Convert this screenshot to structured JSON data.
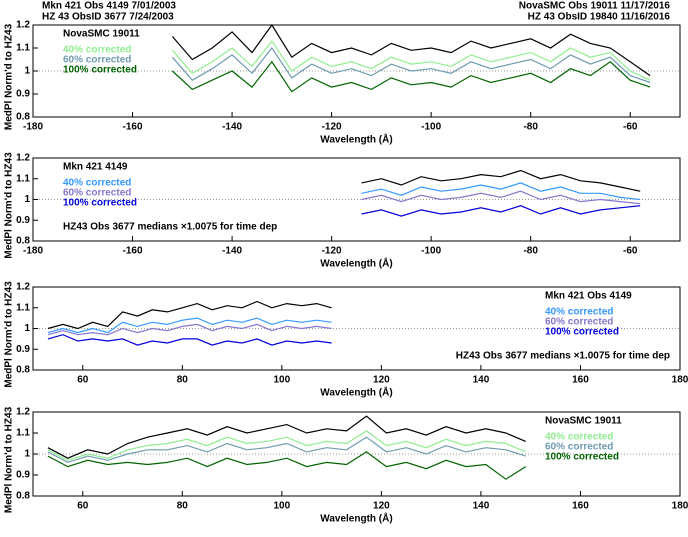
{
  "header": {
    "left": [
      "Mkn 421 Obs 4149 7/01/2003",
      "HZ 43 ObsID 3677 7/24/2003"
    ],
    "right": [
      "NovaSMC Obs 19011 11/17/2016",
      "HZ 43 ObsID 19840 11/16/2016"
    ]
  },
  "chart_data": [
    {
      "type": "line",
      "xlabel": "Wavelength (Å)",
      "ylabel": "MedPl Norm'd to HZ43",
      "annotations": [
        "NovaSMC 19011"
      ],
      "legend": "upper left",
      "xlim": [
        -180,
        -50
      ],
      "ylim": [
        0.8,
        1.2
      ],
      "xticks": [
        -180,
        -160,
        -140,
        -120,
        -100,
        -80,
        -60
      ],
      "yticks": [
        0.8,
        0.9,
        1,
        1.1,
        1.2
      ],
      "refline": 1,
      "x": [
        -152,
        -148,
        -144,
        -140,
        -136,
        -132,
        -128,
        -124,
        -120,
        -116,
        -112,
        -108,
        -104,
        -100,
        -96,
        -92,
        -88,
        -84,
        -80,
        -76,
        -72,
        -68,
        -64,
        -60,
        -56
      ],
      "series": [
        {
          "color": "#000000",
          "values": [
            1.15,
            1.05,
            1.1,
            1.17,
            1.08,
            1.2,
            1.06,
            1.12,
            1.08,
            1.1,
            1.07,
            1.12,
            1.09,
            1.1,
            1.08,
            1.13,
            1.1,
            1.12,
            1.14,
            1.1,
            1.16,
            1.12,
            1.1,
            1.04,
            0.98
          ]
        },
        {
          "name": "40% corrected",
          "color": "#90ee90",
          "values": [
            1.09,
            0.99,
            1.04,
            1.1,
            1.02,
            1.13,
            1.0,
            1.06,
            1.02,
            1.04,
            1.01,
            1.06,
            1.03,
            1.04,
            1.02,
            1.07,
            1.04,
            1.06,
            1.08,
            1.04,
            1.1,
            1.06,
            1.08,
            1.0,
            0.96
          ]
        },
        {
          "name": "60% corrected",
          "color": "#6f9ab0",
          "values": [
            1.06,
            0.96,
            1.01,
            1.07,
            0.99,
            1.1,
            0.97,
            1.03,
            0.99,
            1.01,
            0.98,
            1.03,
            1.0,
            1.01,
            0.99,
            1.04,
            1.01,
            1.03,
            1.05,
            1.01,
            1.07,
            1.03,
            1.06,
            0.98,
            0.95
          ]
        },
        {
          "name": "100% corrected",
          "color": "#006400",
          "values": [
            1.0,
            0.92,
            0.96,
            1.0,
            0.93,
            1.04,
            0.91,
            0.97,
            0.93,
            0.95,
            0.92,
            0.97,
            0.94,
            0.95,
            0.93,
            0.98,
            0.95,
            0.97,
            0.99,
            0.95,
            1.01,
            0.98,
            1.04,
            0.96,
            0.93
          ]
        }
      ]
    },
    {
      "type": "line",
      "xlabel": "Wavelength (Å)",
      "ylabel": "MedPl Norm'd to HZ43",
      "annotations": [
        "Mkn 421 4149",
        "HZ43 Obs 3677 medians ×1.0075 for time dep"
      ],
      "legend": "upper left",
      "xlim": [
        -180,
        -50
      ],
      "ylim": [
        0.8,
        1.2
      ],
      "xticks": [
        -180,
        -160,
        -140,
        -120,
        -100,
        -80,
        -60
      ],
      "yticks": [
        0.8,
        0.9,
        1,
        1.1,
        1.2
      ],
      "refline": 1,
      "x": [
        -114,
        -110,
        -106,
        -102,
        -98,
        -94,
        -90,
        -86,
        -82,
        -78,
        -74,
        -70,
        -66,
        -62,
        -58
      ],
      "series": [
        {
          "color": "#000000",
          "values": [
            1.08,
            1.1,
            1.07,
            1.11,
            1.09,
            1.1,
            1.12,
            1.11,
            1.14,
            1.1,
            1.12,
            1.09,
            1.08,
            1.06,
            1.04
          ]
        },
        {
          "name": "40% corrected",
          "color": "#3399ff",
          "values": [
            1.03,
            1.05,
            1.02,
            1.06,
            1.04,
            1.05,
            1.07,
            1.05,
            1.08,
            1.04,
            1.06,
            1.03,
            1.03,
            1.01,
            1.0
          ]
        },
        {
          "name": "60% corrected",
          "color": "#8877cc",
          "values": [
            1.0,
            1.02,
            0.99,
            1.02,
            1.0,
            1.01,
            1.03,
            1.01,
            1.04,
            1.0,
            1.02,
            0.99,
            1.0,
            0.99,
            0.98
          ]
        },
        {
          "name": "100% corrected",
          "color": "#0000dd",
          "values": [
            0.93,
            0.95,
            0.92,
            0.95,
            0.93,
            0.94,
            0.96,
            0.94,
            0.97,
            0.93,
            0.96,
            0.93,
            0.95,
            0.96,
            0.97
          ]
        }
      ]
    },
    {
      "type": "line",
      "xlabel": "Wavelength (Å)",
      "ylabel": "MedPl Norm'd to HZ43",
      "annotations": [
        "Mkn 421 Obs 4149",
        "HZ43 Obs 3677 medians ×1.0075 for time dep"
      ],
      "legend": "upper right",
      "xlim": [
        50,
        180
      ],
      "ylim": [
        0.8,
        1.2
      ],
      "xticks": [
        60,
        80,
        100,
        120,
        140,
        160,
        180
      ],
      "yticks": [
        0.8,
        0.9,
        1,
        1.1,
        1.2
      ],
      "refline": 1,
      "x": [
        53,
        56,
        59,
        62,
        65,
        68,
        71,
        74,
        77,
        80,
        83,
        86,
        89,
        92,
        95,
        98,
        101,
        104,
        107,
        110
      ],
      "series": [
        {
          "color": "#000000",
          "values": [
            1.0,
            1.02,
            1.0,
            1.03,
            1.01,
            1.08,
            1.06,
            1.09,
            1.08,
            1.1,
            1.12,
            1.09,
            1.11,
            1.1,
            1.13,
            1.1,
            1.12,
            1.11,
            1.12,
            1.1
          ]
        },
        {
          "name": "40% corrected",
          "color": "#3399ff",
          "values": [
            0.98,
            1.0,
            0.98,
            1.0,
            0.98,
            1.03,
            1.01,
            1.03,
            1.02,
            1.04,
            1.05,
            1.02,
            1.04,
            1.03,
            1.05,
            1.02,
            1.04,
            1.03,
            1.04,
            1.03
          ]
        },
        {
          "name": "60% corrected",
          "color": "#8877cc",
          "values": [
            0.97,
            0.99,
            0.97,
            0.98,
            0.97,
            1.0,
            0.98,
            1.0,
            0.99,
            1.01,
            1.02,
            0.99,
            1.01,
            1.0,
            1.02,
            0.99,
            1.01,
            1.0,
            1.01,
            1.0
          ]
        },
        {
          "name": "100% corrected",
          "color": "#0000dd",
          "values": [
            0.95,
            0.97,
            0.94,
            0.95,
            0.94,
            0.95,
            0.92,
            0.94,
            0.93,
            0.95,
            0.95,
            0.92,
            0.94,
            0.93,
            0.95,
            0.92,
            0.94,
            0.93,
            0.94,
            0.93
          ]
        }
      ]
    },
    {
      "type": "line",
      "xlabel": "Wavelength (Å)",
      "ylabel": "MedPl Norm'd to HZ43",
      "annotations": [
        "NovaSMC 19011"
      ],
      "legend": "upper right",
      "xlim": [
        50,
        180
      ],
      "ylim": [
        0.8,
        1.2
      ],
      "xticks": [
        60,
        80,
        100,
        120,
        140,
        160,
        180
      ],
      "yticks": [
        0.8,
        0.9,
        1,
        1.1,
        1.2
      ],
      "refline": 1,
      "x": [
        53,
        57,
        61,
        65,
        69,
        73,
        77,
        81,
        85,
        89,
        93,
        97,
        101,
        105,
        109,
        113,
        117,
        121,
        125,
        129,
        133,
        137,
        141,
        145,
        149
      ],
      "series": [
        {
          "color": "#000000",
          "values": [
            1.03,
            0.98,
            1.02,
            1.0,
            1.05,
            1.08,
            1.1,
            1.12,
            1.09,
            1.13,
            1.1,
            1.12,
            1.14,
            1.1,
            1.12,
            1.11,
            1.18,
            1.1,
            1.12,
            1.09,
            1.13,
            1.1,
            1.12,
            1.1,
            1.06
          ]
        },
        {
          "name": "40% corrected",
          "color": "#90ee90",
          "values": [
            1.02,
            0.97,
            1.0,
            0.98,
            1.02,
            1.04,
            1.05,
            1.07,
            1.04,
            1.08,
            1.05,
            1.06,
            1.08,
            1.04,
            1.06,
            1.05,
            1.11,
            1.04,
            1.06,
            1.03,
            1.07,
            1.04,
            1.06,
            1.05,
            1.01
          ]
        },
        {
          "name": "60% corrected",
          "color": "#6f9ab0",
          "values": [
            1.01,
            0.96,
            0.99,
            0.97,
            1.0,
            1.02,
            1.02,
            1.04,
            1.01,
            1.05,
            1.02,
            1.03,
            1.05,
            1.01,
            1.03,
            1.02,
            1.08,
            1.01,
            1.03,
            1.0,
            1.04,
            1.01,
            1.03,
            1.02,
            0.99
          ]
        },
        {
          "name": "100% corrected",
          "color": "#006400",
          "values": [
            0.99,
            0.94,
            0.97,
            0.95,
            0.96,
            0.95,
            0.96,
            0.98,
            0.94,
            0.98,
            0.95,
            0.96,
            0.98,
            0.94,
            0.96,
            0.95,
            1.01,
            0.94,
            0.96,
            0.93,
            0.97,
            0.94,
            0.95,
            0.88,
            0.94
          ]
        }
      ]
    }
  ]
}
